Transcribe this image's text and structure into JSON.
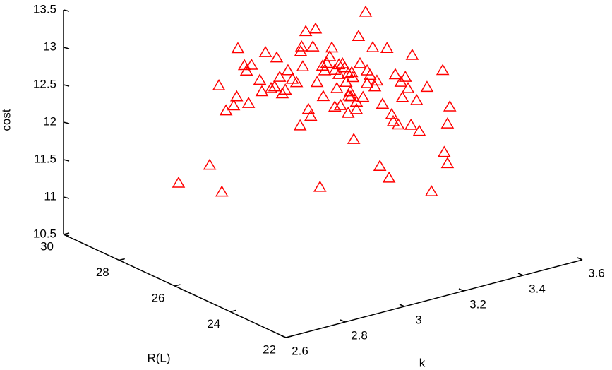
{
  "chart_data": {
    "type": "scatter3d",
    "color": "#ff0000",
    "xlabel": "k",
    "ylabel": "R(L)",
    "zlabel": "cost",
    "xlim": [
      2.6,
      3.6
    ],
    "ylim": [
      22,
      30
    ],
    "zlim": [
      10.5,
      13.5
    ],
    "xticks": [
      2.6,
      2.8,
      3,
      3.2,
      3.4,
      3.6
    ],
    "yticks": [
      22,
      24,
      26,
      28,
      30
    ],
    "zticks": [
      10.5,
      11,
      11.5,
      12,
      12.5,
      13,
      13.5
    ],
    "x": [
      2.613,
      2.718,
      2.759,
      2.749,
      2.773,
      2.799,
      2.809,
      2.813,
      2.835,
      2.842,
      2.849,
      2.859,
      2.887,
      2.894,
      2.906,
      2.925,
      2.937,
      2.944,
      2.954,
      2.963,
      2.973,
      2.982,
      2.997,
      3.011,
      3.025,
      3.028,
      3.023,
      3.032,
      3.042,
      3.051,
      3.059,
      3.066,
      3.075,
      3.08,
      3.09,
      3.099,
      3.101,
      3.113,
      3.123,
      3.13,
      3.14,
      3.147,
      3.154,
      3.159,
      3.166,
      3.173,
      3.178,
      3.185,
      3.187,
      3.192,
      3.197,
      3.204,
      3.213,
      3.22,
      3.225,
      3.235,
      3.244,
      3.249,
      3.259,
      3.268,
      3.275,
      3.282,
      3.292,
      3.301,
      3.316,
      3.323,
      3.332,
      3.337,
      3.344,
      3.354,
      3.363,
      3.368,
      3.378,
      3.387,
      3.397,
      3.401,
      3.416,
      3.425,
      3.451,
      3.466,
      3.504,
      3.509,
      3.52,
      3.528,
      3.52,
      3.106,
      3.185,
      3.201,
      3.154,
      3.213,
      3.194,
      3.14,
      3.249
    ],
    "y": [
      26,
      26,
      26,
      26,
      26,
      26,
      26,
      26,
      26,
      26,
      26,
      26,
      26,
      26,
      26,
      26,
      26,
      26,
      26,
      26,
      26,
      26,
      26,
      26,
      26,
      26,
      26,
      26,
      26,
      26,
      26,
      26,
      26,
      26,
      26,
      26,
      26,
      26,
      26,
      26,
      26,
      26,
      26,
      26,
      26,
      26,
      26,
      26,
      26,
      26,
      26,
      26,
      26,
      26,
      26,
      26,
      26,
      26,
      26,
      26,
      26,
      26,
      26,
      26,
      26,
      26,
      26,
      26,
      26,
      26,
      26,
      26,
      26,
      26,
      26,
      26,
      26,
      26,
      26,
      26,
      26,
      26,
      26,
      26,
      26,
      26,
      26,
      26,
      26,
      26,
      26,
      26,
      26
    ],
    "z": [
      11.86,
      11.99,
      11.59,
      13.02,
      12.66,
      12.7,
      12.81,
      13.45,
      13.2,
      13.12,
      12.68,
      13.18,
      12.95,
      12.79,
      13.3,
      12.8,
      12.81,
      13.19,
      12.92,
      12.69,
      12.73,
      12.98,
      12.85,
      12.79,
      13.19,
      13.25,
      12.2,
      12.98,
      13.44,
      12.39,
      12.29,
      13.21,
      13.44,
      12.72,
      11.31,
      12.92,
      12.51,
      12.94,
      13.02,
      13.13,
      12.82,
      12.57,
      12.88,
      12.33,
      12.88,
      12.82,
      12.62,
      12.2,
      12.43,
      12.48,
      12.73,
      11.83,
      12.32,
      13.19,
      12.82,
      12.36,
      13.49,
      12.7,
      12.63,
      12.99,
      12.46,
      12.53,
      11.38,
      12.2,
      12.93,
      11.19,
      12.03,
      11.93,
      12.55,
      11.87,
      12.43,
      12.22,
      12.48,
      12.32,
      11.82,
      12.75,
      12.13,
      11.71,
      12.27,
      10.86,
      12.44,
      11.34,
      11.18,
      11.93,
      11.71,
      12.85,
      12.73,
      12.66,
      12.75,
      12.22,
      12.41,
      12.33,
      12.53
    ]
  }
}
